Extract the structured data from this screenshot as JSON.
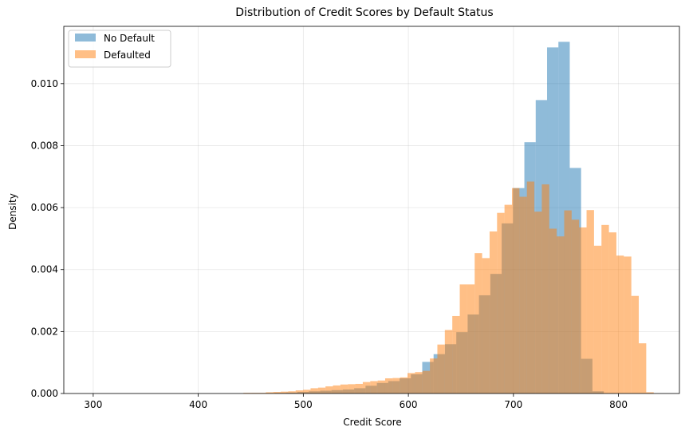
{
  "chart_data": {
    "type": "bar",
    "subtype": "overlapping-density-histogram",
    "title": "Distribution of Credit Scores by Default Status",
    "xlabel": "Credit Score",
    "ylabel": "Density",
    "xlim": [
      272,
      858
    ],
    "ylim": [
      0,
      0.01185
    ],
    "xticks": [
      300,
      400,
      500,
      600,
      700,
      800
    ],
    "yticks": [
      0.0,
      0.002,
      0.004,
      0.006,
      0.008,
      0.01
    ],
    "ytick_labels": [
      "0.000",
      "0.002",
      "0.004",
      "0.006",
      "0.008",
      "0.010"
    ],
    "grid": true,
    "legend_position": "top-left",
    "series": [
      {
        "name": "No Default",
        "color": "#1f77b4",
        "opacity": 0.5,
        "bin_start": 300,
        "bin_width": 10.8,
        "values": [
          0,
          0,
          0,
          0,
          0,
          0,
          0,
          0,
          0,
          0,
          0,
          0,
          0,
          0,
          1e-05,
          1e-05,
          2e-05,
          3e-05,
          5e-05,
          7e-05,
          9e-05,
          0.00011,
          0.00013,
          0.00017,
          0.00025,
          0.00034,
          0.0004,
          0.00049,
          0.00062,
          0.00102,
          0.00127,
          0.00159,
          0.00198,
          0.00255,
          0.00317,
          0.00386,
          0.00549,
          0.00663,
          0.00811,
          0.00947,
          0.01117,
          0.01135,
          0.00728,
          0.00112,
          7e-05
        ]
      },
      {
        "name": "Defaulted",
        "color": "#ff7f0e",
        "opacity": 0.5,
        "bin_start": 443,
        "bin_width": 7.1,
        "values": [
          2e-05,
          2e-05,
          2e-05,
          4e-05,
          5e-05,
          6e-05,
          7e-05,
          0.0001,
          0.00012,
          0.00017,
          0.00019,
          0.00023,
          0.00026,
          0.00029,
          0.0003,
          0.00031,
          0.00037,
          0.0004,
          0.00042,
          0.00049,
          0.0005,
          0.00052,
          0.00066,
          0.00069,
          0.00073,
          0.00113,
          0.00158,
          0.00205,
          0.0025,
          0.00352,
          0.00352,
          0.00453,
          0.00437,
          0.00523,
          0.00583,
          0.00609,
          0.00663,
          0.00635,
          0.00684,
          0.00587,
          0.00675,
          0.00532,
          0.00507,
          0.00591,
          0.00561,
          0.00536,
          0.00592,
          0.00477,
          0.00544,
          0.0052,
          0.00445,
          0.00442,
          0.00315,
          0.00162,
          4e-05
        ]
      }
    ]
  }
}
